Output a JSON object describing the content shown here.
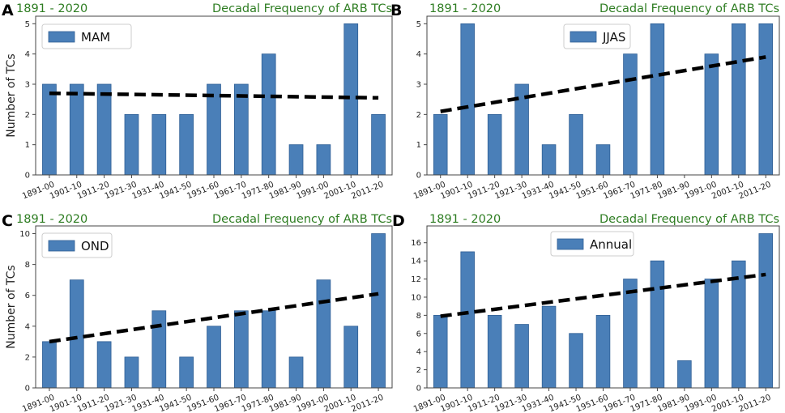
{
  "chart_data": [
    {
      "panel_letter": "A",
      "type": "bar",
      "period": "1891 - 2020",
      "title": "Decadal Frequency of ARB TCs",
      "ylabel": "Number of TCs",
      "legend": "MAM",
      "categories": [
        "1891-00",
        "1901-10",
        "1911-20",
        "1921-30",
        "1931-40",
        "1941-50",
        "1951-60",
        "1961-70",
        "1971-80",
        "1981-90",
        "1991-00",
        "2001-10",
        "2011-20"
      ],
      "values": [
        3,
        3,
        3,
        2,
        2,
        2,
        3,
        3,
        4,
        1,
        1,
        5,
        2
      ],
      "ylim": [
        0,
        5.25
      ],
      "yticks": [
        0,
        1,
        2,
        3,
        4,
        5
      ],
      "trend": [
        2.7,
        2.55
      ]
    },
    {
      "panel_letter": "B",
      "type": "bar",
      "period": "1891 - 2020",
      "title": "Decadal Frequency of ARB TCs",
      "ylabel": "",
      "legend": "JJAS",
      "categories": [
        "1891-00",
        "1901-10",
        "1911-20",
        "1921-30",
        "1931-40",
        "1941-50",
        "1951-60",
        "1961-70",
        "1971-80",
        "1981-90",
        "1991-00",
        "2001-10",
        "2011-20"
      ],
      "values": [
        2,
        5,
        2,
        3,
        1,
        2,
        1,
        4,
        5,
        0,
        4,
        5,
        5
      ],
      "ylim": [
        0,
        5.25
      ],
      "yticks": [
        0,
        1,
        2,
        3,
        4,
        5
      ],
      "trend": [
        2.1,
        3.9
      ]
    },
    {
      "panel_letter": "C",
      "type": "bar",
      "period": "1891 - 2020",
      "title": "Decadal Frequency of ARB TCs",
      "ylabel": "Number of TCs",
      "legend": "OND",
      "categories": [
        "1891-00",
        "1901-10",
        "1911-20",
        "1921-30",
        "1931-40",
        "1941-50",
        "1951-60",
        "1961-70",
        "1971-80",
        "1981-90",
        "1991-00",
        "2001-10",
        "2011-20"
      ],
      "values": [
        3,
        7,
        3,
        2,
        5,
        2,
        4,
        5,
        5,
        2,
        7,
        4,
        10
      ],
      "ylim": [
        0,
        10.5
      ],
      "yticks": [
        0,
        2,
        4,
        6,
        8,
        10
      ],
      "trend": [
        3.0,
        6.1
      ]
    },
    {
      "panel_letter": "D",
      "type": "bar",
      "period": "1891 - 2020",
      "title": "Decadal Frequency of ARB TCs",
      "ylabel": "",
      "legend": "Annual",
      "categories": [
        "1891-00",
        "1901-10",
        "1911-20",
        "1921-30",
        "1931-40",
        "1941-50",
        "1951-60",
        "1961-70",
        "1971-80",
        "1981-90",
        "1991-00",
        "2001-10",
        "2011-20"
      ],
      "values": [
        8,
        15,
        8,
        7,
        9,
        6,
        8,
        12,
        14,
        3,
        12,
        14,
        17
      ],
      "ylim": [
        0,
        17.85
      ],
      "yticks": [
        0,
        2,
        4,
        6,
        8,
        10,
        12,
        14,
        16
      ],
      "trend": [
        7.9,
        12.5
      ]
    }
  ],
  "colors": {
    "bar": "#4a7fb8",
    "bar_edge": "#2f5f95",
    "header_text": "#2e7d22",
    "trend": "#000000"
  }
}
